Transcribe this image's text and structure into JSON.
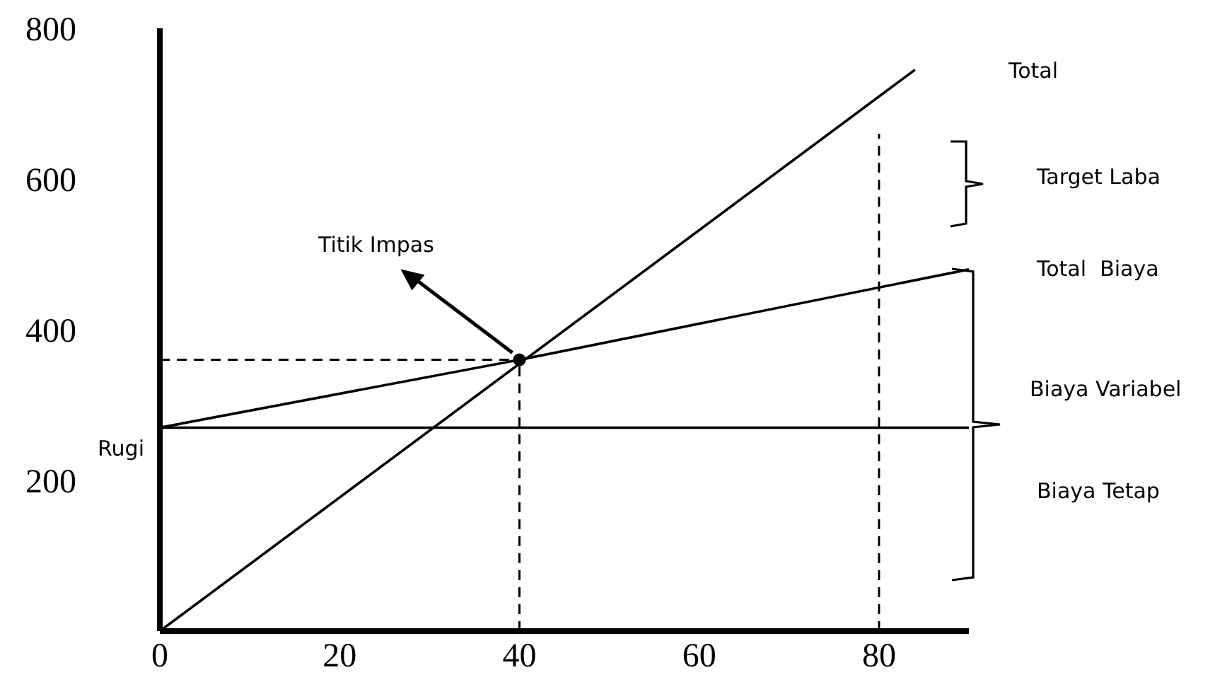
{
  "chart_data": {
    "type": "line",
    "xlim": [
      0,
      90
    ],
    "xticks": [
      0,
      20,
      40,
      60,
      80
    ],
    "ylim": [
      0,
      800
    ],
    "yticks": [
      200,
      400,
      600,
      800
    ],
    "grid": false,
    "marker": "none",
    "line_style": "solid",
    "series": [
      {
        "color": "#000000",
        "x": [
          0,
          84
        ],
        "values": [
          0,
          745
        ]
      },
      {
        "color": "#000000",
        "x": [
          0,
          40,
          90
        ],
        "values": [
          270,
          360,
          480
        ]
      },
      {
        "color": "#000000",
        "x": [
          0,
          90
        ],
        "values": [
          270,
          270
        ]
      },
      {
        "color": "#000000",
        "x": [
          0,
          40
        ],
        "values": [
          360,
          360
        ],
        "line_style": "dashed"
      },
      {
        "color": "#000000",
        "x": [
          40,
          40
        ],
        "values": [
          0,
          360
        ],
        "line_style": "dashed"
      },
      {
        "color": "#000000",
        "x": [
          80,
          80
        ],
        "values": [
          0,
          660
        ],
        "line_style": "dashed"
      },
      {
        "type": "scatter",
        "color": "#000000",
        "x": [
          40
        ],
        "values": [
          360
        ],
        "marker": "circle"
      }
    ],
    "annotations": [
      {
        "text": "Titik Impas",
        "x": 40,
        "y": 360
      },
      "Total",
      "Target Laba",
      "Total  Biaya",
      "Biaya Variabel",
      "Biaya Tetap",
      "Rugi"
    ]
  }
}
